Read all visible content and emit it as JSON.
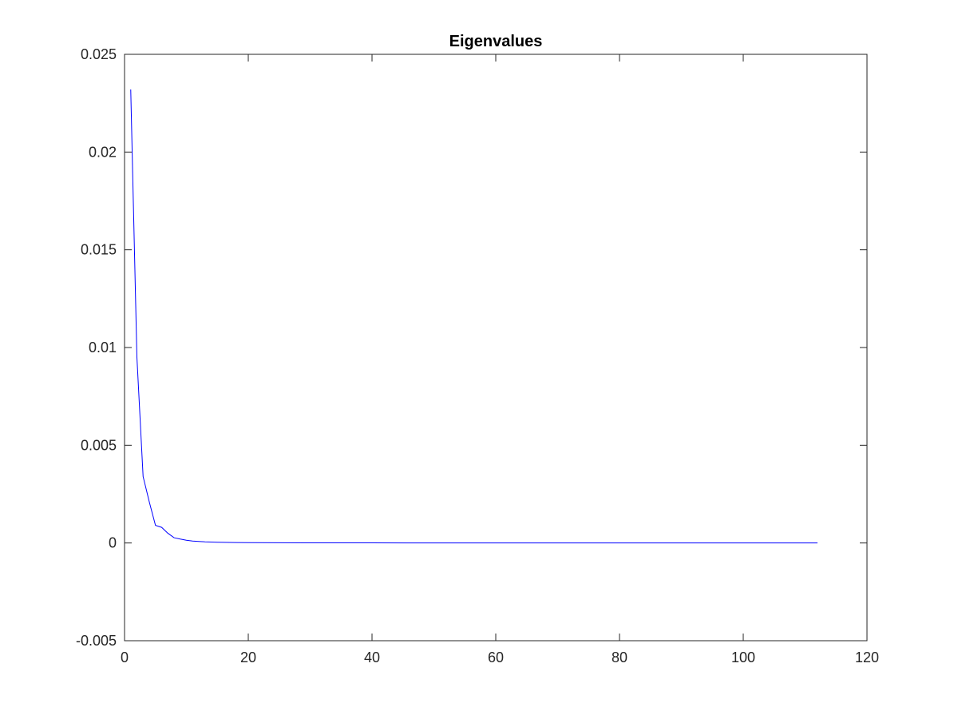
{
  "chart_data": {
    "type": "line",
    "title": "Eigenvalues",
    "xlabel": "",
    "ylabel": "",
    "xlim": [
      0,
      120
    ],
    "ylim": [
      -0.005,
      0.025
    ],
    "xticks": [
      0,
      20,
      40,
      60,
      80,
      100,
      120
    ],
    "xtick_labels": [
      "0",
      "20",
      "40",
      "60",
      "80",
      "100",
      "120"
    ],
    "yticks": [
      -0.005,
      0,
      0.005,
      0.01,
      0.015,
      0.02,
      0.025
    ],
    "ytick_labels": [
      "-0.005",
      "0",
      "0.005",
      "0.01",
      "0.015",
      "0.02",
      "0.025"
    ],
    "grid": false,
    "box": true,
    "series": [
      {
        "color": "#0000ff",
        "x": [
          1,
          2,
          3,
          4,
          5,
          6,
          7,
          8,
          9,
          10,
          11,
          12,
          13,
          14,
          15,
          16,
          18,
          20,
          25,
          30,
          40,
          50,
          60,
          70,
          80,
          90,
          100,
          112
        ],
        "y": [
          0.0232,
          0.0095,
          0.0034,
          0.0021,
          0.0009,
          0.0008,
          0.0005,
          0.00027,
          0.0002,
          0.00014,
          0.0001,
          8e-05,
          6e-05,
          5e-05,
          4e-05,
          3e-05,
          2e-05,
          1.5e-05,
          1e-05,
          7e-06,
          5e-06,
          3e-06,
          2e-06,
          2e-06,
          1e-06,
          1e-06,
          1e-06,
          1e-06
        ]
      }
    ]
  }
}
